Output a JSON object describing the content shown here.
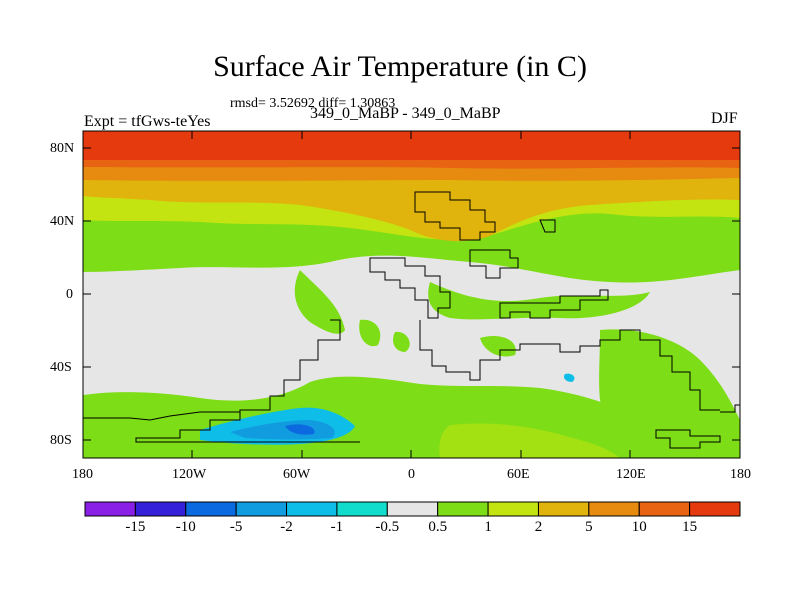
{
  "title": "Surface Air Temperature (in C)",
  "stats": "rmsd= 3.52692 diff= 1.30863",
  "experiment": "Expt = tfGws-teYes",
  "subtitle": "349_0_MaBP - 349_0_MaBP",
  "season": "DJF",
  "lat_labels": [
    "80N",
    "40N",
    "0",
    "40S",
    "80S"
  ],
  "lon_labels": [
    "180",
    "120W",
    "60W",
    "0",
    "60E",
    "120E",
    "180"
  ],
  "colorbar": {
    "labels": [
      "-15",
      "-10",
      "-5",
      "-2",
      "-1",
      "-0.5",
      "0.5",
      "1",
      "2",
      "5",
      "10",
      "15"
    ],
    "colors": [
      "#8a1fe6",
      "#3320d8",
      "#0c6ae0",
      "#129ce0",
      "#0fbee8",
      "#12dccc",
      "#e6e6e6",
      "#7ddd16",
      "#c4e412",
      "#e0b40c",
      "#e68a10",
      "#e86412",
      "#e43a0e"
    ]
  }
}
